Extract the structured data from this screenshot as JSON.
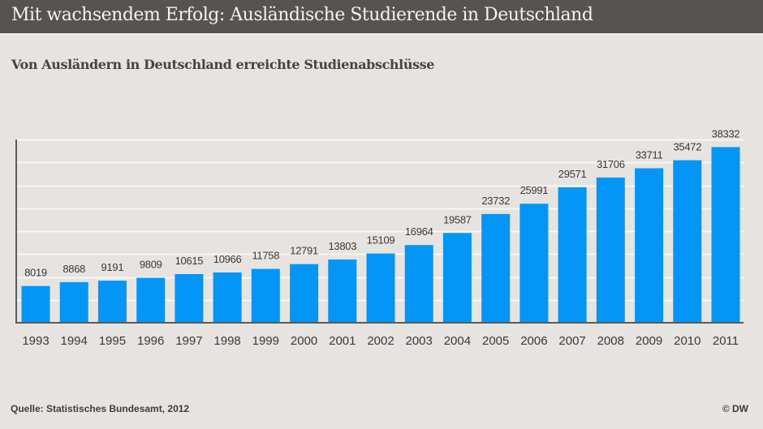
{
  "header": {
    "title": "Mit wachsendem Erfolg: Ausländische Studierende in Deutschland"
  },
  "footer": {
    "source": "Quelle: Statistisches Bundesamt, 2012",
    "copyright": "© DW"
  },
  "colors": {
    "bar": "#0396f6",
    "header_bg": "#555453",
    "background": "#e6e3e0",
    "gridline": "#f8f7f5",
    "axis": "#5d5a57"
  },
  "chart_data": {
    "type": "bar",
    "title": "Von Ausländern in Deutschland erreichte Studienabschlüsse",
    "xlabel": "",
    "ylabel": "",
    "categories": [
      "1993",
      "1994",
      "1995",
      "1996",
      "1997",
      "1998",
      "1999",
      "2000",
      "2001",
      "2002",
      "2003",
      "2004",
      "2005",
      "2006",
      "2007",
      "2008",
      "2009",
      "2010",
      "2011"
    ],
    "values": [
      8019,
      8868,
      9191,
      9809,
      10615,
      10966,
      11758,
      12791,
      13803,
      15109,
      16964,
      19587,
      23732,
      25991,
      29571,
      31706,
      33711,
      35472,
      38332
    ],
    "ylim": [
      0,
      40000
    ],
    "y_gridline_step": 5000,
    "y_tick_labels_shown": false,
    "data_labels": true,
    "grid": true,
    "legend": "none"
  }
}
